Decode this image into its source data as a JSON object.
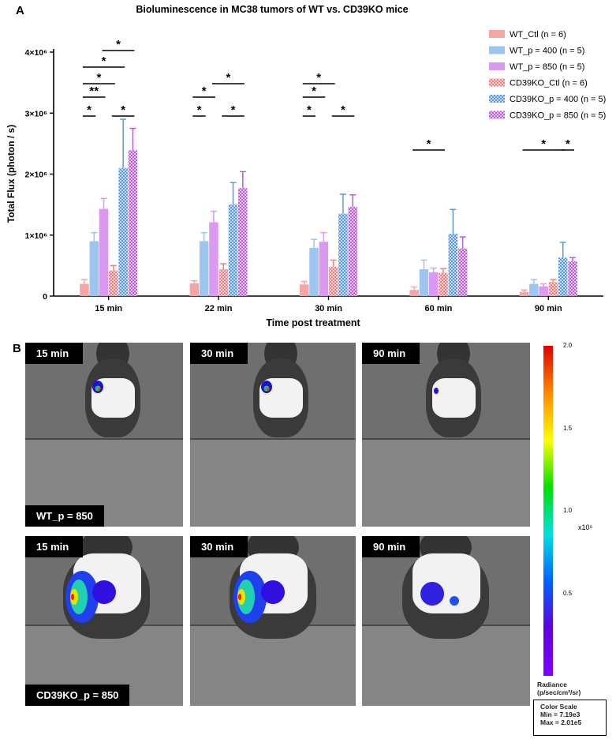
{
  "panel_labels": {
    "a": "A",
    "b": "B"
  },
  "chart_data": {
    "type": "bar",
    "title": "Bioluminescence in MC38 tumors of WT vs. CD39KO mice",
    "xlabel": "Time post treatment",
    "ylabel": "Total Flux (photon / s)",
    "ylim": [
      0,
      4000000
    ],
    "yticks": [
      {
        "value": 0,
        "label": "0"
      },
      {
        "value": 1000000,
        "label": "1×10⁶"
      },
      {
        "value": 2000000,
        "label": "2×10⁶"
      },
      {
        "value": 3000000,
        "label": "3×10⁶"
      },
      {
        "value": 4000000,
        "label": "4×10⁶"
      }
    ],
    "categories": [
      "15 min",
      "22 min",
      "30 min",
      "60 min",
      "90 min"
    ],
    "legend_position": "top-right",
    "series": [
      {
        "name": "WT_Ctl (n = 6)",
        "color": "#f4a6a6",
        "pattern": "solid",
        "values": [
          200000,
          210000,
          190000,
          100000,
          70000
        ],
        "errors": [
          70000,
          40000,
          50000,
          50000,
          30000
        ]
      },
      {
        "name": "WT_p = 400 (n = 5)",
        "color": "#9ec5f0",
        "pattern": "solid",
        "values": [
          900000,
          900000,
          790000,
          440000,
          200000
        ],
        "errors": [
          140000,
          140000,
          140000,
          150000,
          70000
        ]
      },
      {
        "name": "WT_p = 850 (n = 5)",
        "color": "#d99af0",
        "pattern": "solid",
        "values": [
          1430000,
          1210000,
          890000,
          390000,
          160000
        ],
        "errors": [
          170000,
          180000,
          150000,
          70000,
          40000
        ]
      },
      {
        "name": "CD39KO_Ctl (n = 6)",
        "color": "#f08080",
        "pattern": "checker",
        "values": [
          420000,
          440000,
          480000,
          380000,
          230000
        ],
        "errors": [
          80000,
          90000,
          110000,
          70000,
          40000
        ]
      },
      {
        "name": "CD39KO_p = 400 (n = 5)",
        "color": "#5a9ae0",
        "pattern": "checker",
        "values": [
          2100000,
          1500000,
          1350000,
          1020000,
          630000
        ],
        "errors": [
          800000,
          360000,
          320000,
          400000,
          250000
        ]
      },
      {
        "name": "CD39KO_p = 850 (n = 5)",
        "color": "#b65fd6",
        "pattern": "checker",
        "values": [
          2390000,
          1770000,
          1460000,
          780000,
          570000
        ],
        "errors": [
          360000,
          270000,
          200000,
          190000,
          60000
        ]
      }
    ],
    "significance": [
      {
        "category": 0,
        "from": 0,
        "to": 1,
        "level": 1,
        "label": "*"
      },
      {
        "category": 0,
        "from": 0,
        "to": 2,
        "level": 2,
        "label": "**"
      },
      {
        "category": 0,
        "from": 0,
        "to": 3,
        "level": 3,
        "label": "*"
      },
      {
        "category": 0,
        "from": 0,
        "to": 4,
        "level": 4,
        "label": "*"
      },
      {
        "category": 0,
        "from": 2,
        "to": 5,
        "level": 5,
        "label": "*"
      },
      {
        "category": 0,
        "from": 3,
        "to": 5,
        "level": 1,
        "label": "*"
      },
      {
        "category": 1,
        "from": 0,
        "to": 1,
        "level": 1,
        "label": "*"
      },
      {
        "category": 1,
        "from": 0,
        "to": 2,
        "level": 2,
        "label": "*"
      },
      {
        "category": 1,
        "from": 2,
        "to": 5,
        "level": 3,
        "label": "*"
      },
      {
        "category": 1,
        "from": 3,
        "to": 5,
        "level": 1,
        "label": "*"
      },
      {
        "category": 2,
        "from": 0,
        "to": 1,
        "level": 1,
        "label": "*"
      },
      {
        "category": 2,
        "from": 0,
        "to": 2,
        "level": 2,
        "label": "*"
      },
      {
        "category": 2,
        "from": 0,
        "to": 3,
        "level": 3,
        "label": "*"
      },
      {
        "category": 2,
        "from": 3,
        "to": 5,
        "level": 1,
        "label": "*"
      },
      {
        "category": 3,
        "from": 0,
        "to": 3,
        "level": 6,
        "label": "*"
      },
      {
        "category": 4,
        "from": 0,
        "to": 4,
        "level": 6,
        "label": "*"
      },
      {
        "category": 4,
        "from": 4,
        "to": 5,
        "level": 6,
        "label": "*"
      }
    ]
  },
  "imaging": {
    "rows": [
      {
        "group_label": "WT_p = 850",
        "panels": [
          {
            "time": "15 min",
            "signal": "small"
          },
          {
            "time": "30 min",
            "signal": "small"
          },
          {
            "time": "90 min",
            "signal": "faint"
          }
        ]
      },
      {
        "group_label": "CD39KO_p = 850",
        "panels": [
          {
            "time": "15 min",
            "signal": "large"
          },
          {
            "time": "30 min",
            "signal": "large"
          },
          {
            "time": "90 min",
            "signal": "medium"
          }
        ]
      }
    ],
    "color_scale": {
      "ticks": [
        "2.0",
        "1.5",
        "1.0",
        "0.5"
      ],
      "tick_values": [
        2.0,
        1.5,
        1.0,
        0.5
      ],
      "unit": "x10⁵",
      "radiance_label": "Radiance",
      "radiance_unit": "(p/sec/cm²/sr)",
      "title": "Color Scale",
      "min": "Min = 7.19e3",
      "max": "Max = 2.01e5",
      "colors": [
        "#e00000",
        "#ff8800",
        "#ffff00",
        "#00e000",
        "#00e0e0",
        "#0060ff",
        "#6000e0",
        "#7f00ff"
      ]
    }
  }
}
